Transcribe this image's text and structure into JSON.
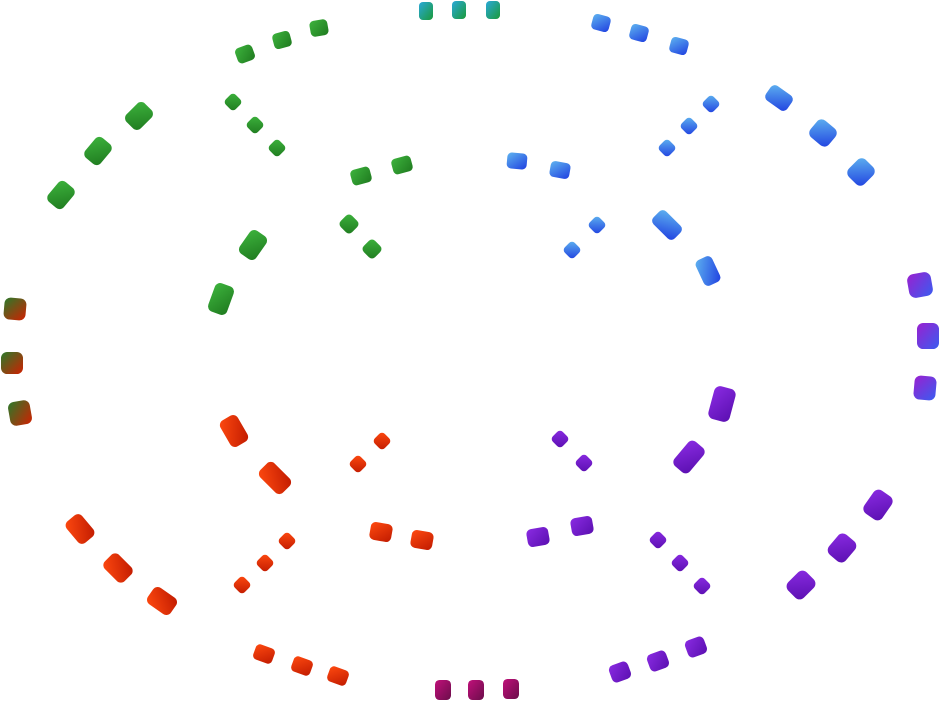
{
  "palette": {
    "green": [
      "#1f7a1f",
      "#3db33d"
    ],
    "blue": [
      "#1f3fe0",
      "#5fb4f0"
    ],
    "purple": [
      "#5a0fb0",
      "#8a2be2"
    ],
    "red": [
      "#c01a00",
      "#ff4a10"
    ],
    "teal": [
      "#1a9a3a",
      "#2aa8d8"
    ],
    "maroon": [
      "#6b0d4a",
      "#c0107a"
    ],
    "blue_violet": [
      "#3a5cf0",
      "#9a20d0"
    ],
    "red_green": [
      "#d02000",
      "#2a7a2a"
    ]
  }
}
